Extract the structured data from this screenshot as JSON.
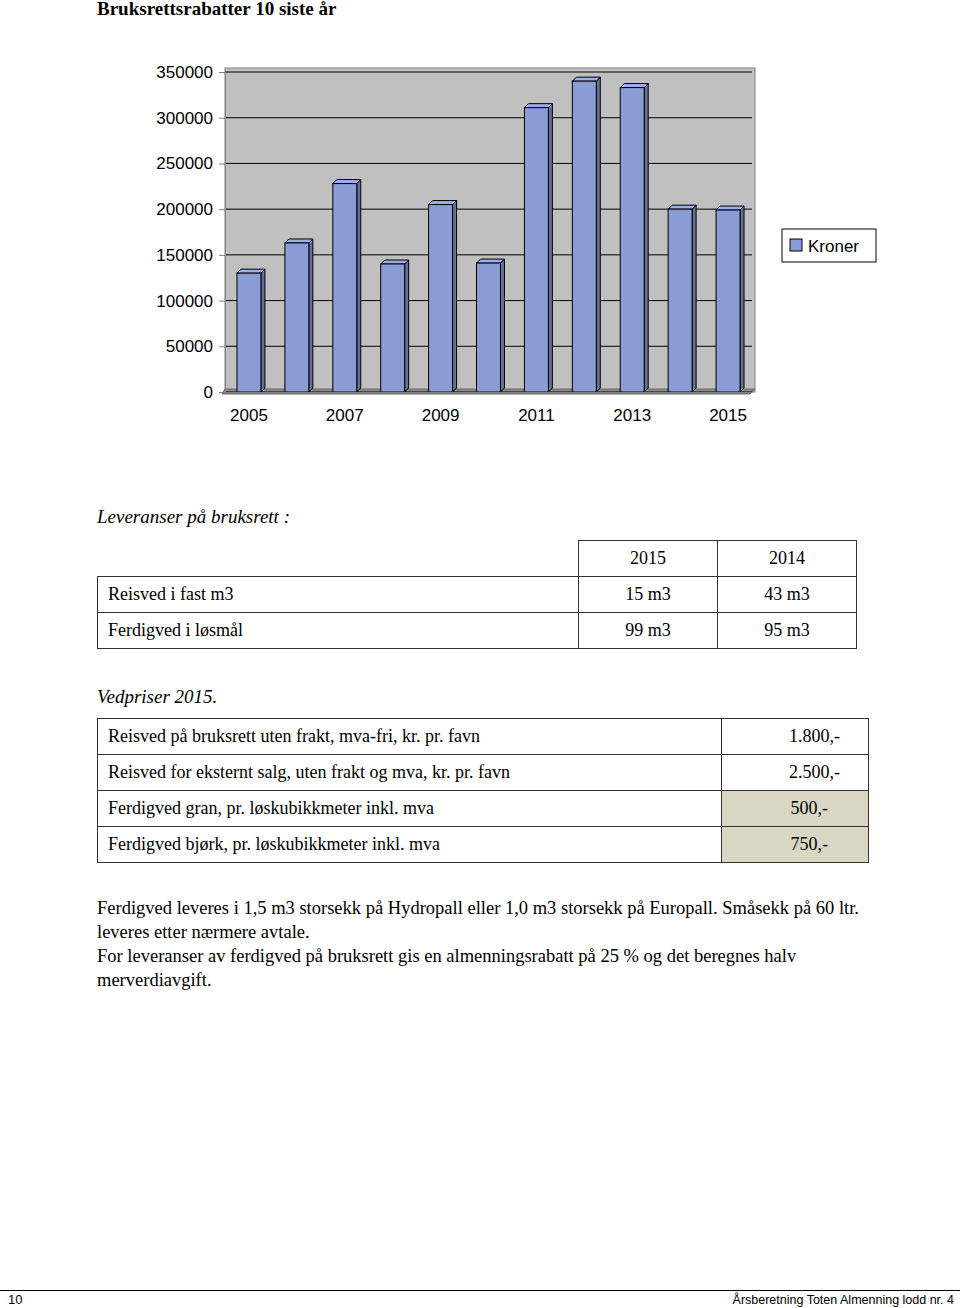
{
  "chart_data": {
    "type": "bar",
    "title": "Bruksrettsrabatter 10 siste år",
    "categories": [
      "2005",
      null,
      "2007",
      null,
      "2009",
      null,
      "2011",
      null,
      "2013",
      null,
      "2015"
    ],
    "series": [
      {
        "name": "Kroner",
        "color": "#8b9bd3",
        "values": [
          130000,
          163000,
          228000,
          140000,
          205000,
          141000,
          311000,
          340000,
          333000,
          200000,
          199000
        ]
      }
    ],
    "ylim": [
      0,
      350000
    ],
    "yticks": [
      0,
      50000,
      100000,
      150000,
      200000,
      250000,
      300000,
      350000
    ],
    "grid": true,
    "legend": "right"
  },
  "deliveries": {
    "heading": "Leveranser på bruksrett :",
    "header": [
      "2015",
      "2014"
    ],
    "rows": [
      [
        "Reisved i fast m3",
        "15 m3",
        "43 m3"
      ],
      [
        "Ferdigved i løsmål",
        "99 m3",
        "95 m3"
      ]
    ]
  },
  "prices": {
    "heading": "Vedpriser 2015.",
    "rows": [
      [
        "Reisved på bruksrett uten frakt, mva-fri, kr. pr. favn",
        "1.800,-"
      ],
      [
        "Reisved for eksternt salg, uten frakt og mva, kr. pr. favn",
        "2.500,-"
      ],
      [
        "Ferdigved gran, pr. løskubikkmeter inkl. mva",
        "500,-"
      ],
      [
        "Ferdigved bjørk, pr. løskubikkmeter inkl. mva",
        "750,-"
      ]
    ]
  },
  "paragraphs": [
    "Ferdigved leveres i 1,5 m3 storsekk på Hydropall eller 1,0 m3 storsekk på Europall. Småsekk på 60 ltr. leveres etter nærmere avtale.",
    "For leveranser av ferdigved på bruksrett gis en almenningsrabatt på 25 % og det beregnes halv merverdiavgift."
  ],
  "footer": {
    "page": "10",
    "text": "Årsberetning Toten Almenning lodd nr. 4"
  }
}
